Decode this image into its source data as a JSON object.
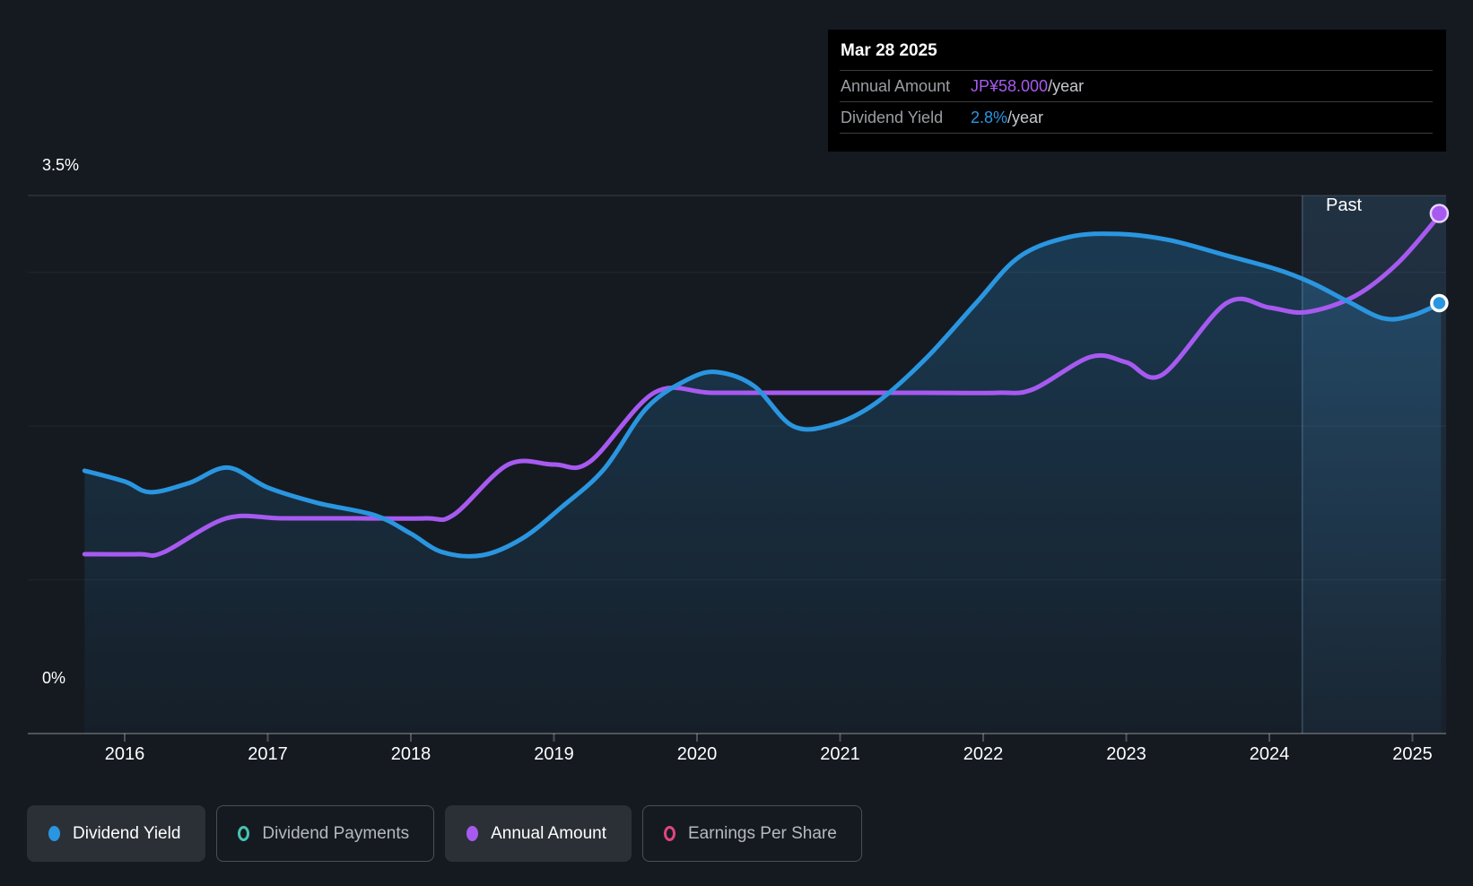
{
  "colors": {
    "background": "#151a21",
    "tooltip_background": "#000000",
    "dividend_yield_blue": "#2a96e0",
    "annual_amount_purple": "#a75af0",
    "dividend_payments_teal": "#46c3b2",
    "earnings_per_share_pink": "#e0457f",
    "grid_faint": "rgba(255,255,255,0.06)",
    "grid_top": "rgba(255,255,255,0.16)",
    "axis_line": "rgba(255,255,255,0.25)",
    "text_primary": "#ffffff",
    "text_muted": "#9b9ea3"
  },
  "tooltip": {
    "date": "Mar 28 2025",
    "rows": [
      {
        "label": "Annual Amount",
        "value": "JP¥58.000",
        "suffix": "/year",
        "color_key": "annual_amount_purple"
      },
      {
        "label": "Dividend Yield",
        "value": "2.8%",
        "suffix": "/year",
        "color_key": "dividend_yield_blue"
      }
    ]
  },
  "chart_data": {
    "type": "line",
    "x_axis": {
      "tick_years": [
        2016,
        2017,
        2018,
        2019,
        2020,
        2021,
        2022,
        2023,
        2024,
        2025
      ]
    },
    "y_axis": {
      "top_label": "3.5%",
      "bottom_label": "0%",
      "percent_range": [
        0,
        3.5
      ],
      "gridline_percents": [
        3.5,
        3,
        2,
        1,
        0
      ]
    },
    "past_label": "Past",
    "past_divider_year": 2024.23,
    "series": [
      {
        "name": "Dividend Yield",
        "unit": "percent_per_year",
        "color_key": "dividend_yield_blue",
        "area_fill": true,
        "y_range": [
          0,
          3.5
        ],
        "current_value": "2.8%/year",
        "points": [
          [
            2015.72,
            1.71
          ],
          [
            2016.0,
            1.64
          ],
          [
            2016.18,
            1.57
          ],
          [
            2016.45,
            1.63
          ],
          [
            2016.72,
            1.73
          ],
          [
            2017.0,
            1.6
          ],
          [
            2017.35,
            1.5
          ],
          [
            2017.75,
            1.42
          ],
          [
            2018.0,
            1.3
          ],
          [
            2018.22,
            1.18
          ],
          [
            2018.5,
            1.16
          ],
          [
            2018.78,
            1.27
          ],
          [
            2019.05,
            1.47
          ],
          [
            2019.35,
            1.72
          ],
          [
            2019.65,
            2.12
          ],
          [
            2019.95,
            2.31
          ],
          [
            2020.15,
            2.35
          ],
          [
            2020.4,
            2.26
          ],
          [
            2020.67,
            2.0
          ],
          [
            2020.95,
            2.01
          ],
          [
            2021.25,
            2.15
          ],
          [
            2021.6,
            2.44
          ],
          [
            2021.95,
            2.8
          ],
          [
            2022.25,
            3.1
          ],
          [
            2022.6,
            3.23
          ],
          [
            2022.95,
            3.25
          ],
          [
            2023.3,
            3.21
          ],
          [
            2023.7,
            3.11
          ],
          [
            2024.05,
            3.02
          ],
          [
            2024.3,
            2.93
          ],
          [
            2024.55,
            2.81
          ],
          [
            2024.8,
            2.7
          ],
          [
            2025.0,
            2.72
          ],
          [
            2025.2,
            2.8
          ]
        ]
      },
      {
        "name": "Annual Amount",
        "unit": "JPY_per_year",
        "color_key": "annual_amount_purple",
        "area_fill": false,
        "y_range": [
          0,
          60
        ],
        "current_value": "JP¥58.000/year",
        "points": [
          [
            2015.72,
            20
          ],
          [
            2016.1,
            20
          ],
          [
            2016.27,
            20.2
          ],
          [
            2016.71,
            24
          ],
          [
            2017.1,
            24
          ],
          [
            2017.6,
            24
          ],
          [
            2018.1,
            24
          ],
          [
            2018.3,
            24.4
          ],
          [
            2018.68,
            30
          ],
          [
            2019.0,
            30
          ],
          [
            2019.25,
            30.3
          ],
          [
            2019.7,
            38
          ],
          [
            2020.1,
            38
          ],
          [
            2020.6,
            38
          ],
          [
            2021.1,
            38
          ],
          [
            2021.6,
            38
          ],
          [
            2022.1,
            38
          ],
          [
            2022.35,
            38.4
          ],
          [
            2022.75,
            42
          ],
          [
            2023.0,
            41.4
          ],
          [
            2023.25,
            40
          ],
          [
            2023.7,
            48
          ],
          [
            2024.0,
            47.5
          ],
          [
            2024.26,
            47
          ],
          [
            2024.6,
            48.8
          ],
          [
            2024.9,
            52.5
          ],
          [
            2025.2,
            58
          ]
        ]
      }
    ]
  },
  "legend": {
    "items": [
      {
        "label": "Dividend Yield",
        "color_key": "dividend_yield_blue",
        "swatch": "filled",
        "active": true
      },
      {
        "label": "Dividend Payments",
        "color_key": "dividend_payments_teal",
        "swatch": "ring",
        "active": false
      },
      {
        "label": "Annual Amount",
        "color_key": "annual_amount_purple",
        "swatch": "filled",
        "active": true
      },
      {
        "label": "Earnings Per Share",
        "color_key": "earnings_per_share_pink",
        "swatch": "ring",
        "active": false
      }
    ]
  }
}
